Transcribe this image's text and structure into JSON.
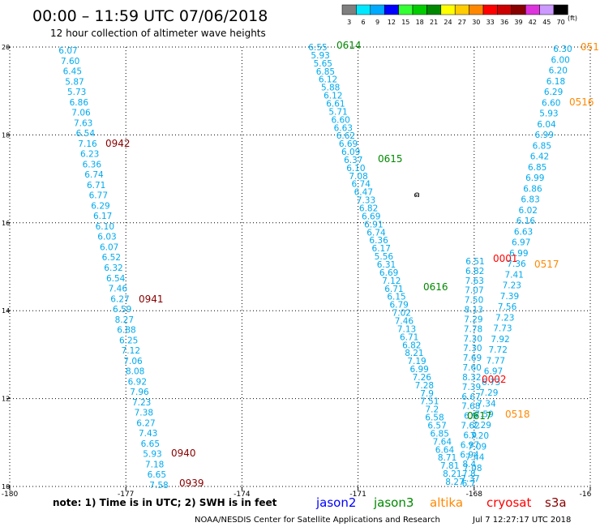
{
  "header": {
    "title": "00:00 – 11:59 UTC 07/06/2018",
    "subtitle": "12 hour collection of altimeter wave heights"
  },
  "colorbar": {
    "unit": "(ft)",
    "bins": [
      {
        "label": "3",
        "color": "#7f7f7f"
      },
      {
        "label": "6",
        "color": "#00e8ff"
      },
      {
        "label": "9",
        "color": "#00aaff"
      },
      {
        "label": "12",
        "color": "#0000ff"
      },
      {
        "label": "15",
        "color": "#33ff33"
      },
      {
        "label": "18",
        "color": "#00cc00"
      },
      {
        "label": "21",
        "color": "#008800"
      },
      {
        "label": "24",
        "color": "#ffff00"
      },
      {
        "label": "27",
        "color": "#ffcc00"
      },
      {
        "label": "30",
        "color": "#ff8800"
      },
      {
        "label": "33",
        "color": "#ff0000"
      },
      {
        "label": "36",
        "color": "#cc0000"
      },
      {
        "label": "39",
        "color": "#880000"
      },
      {
        "label": "42",
        "color": "#dd33dd"
      },
      {
        "label": "45",
        "color": "#cc99ff"
      },
      {
        "label": "70",
        "color": "#000000"
      }
    ]
  },
  "footer": {
    "note": "note:  1) Time is in UTC;  2) SWH is in feet",
    "satellites": [
      {
        "name": "jason2",
        "color": "#0000ff"
      },
      {
        "name": "jason3",
        "color": "#008800"
      },
      {
        "name": "altika",
        "color": "#ff8800"
      },
      {
        "name": "cryosat",
        "color": "#ff0000"
      },
      {
        "name": "s3a",
        "color": "#880000"
      }
    ],
    "credit": "NOAA/NESDIS Center for Satellite Applications and Research",
    "timestamp": "Jul  7 12:27:17 UTC 2018"
  },
  "colors": {
    "value": "#00aaee",
    "grid": "#000000"
  },
  "chart_data": {
    "type": "scatter",
    "xlim": [
      -180,
      -165
    ],
    "ylim": [
      10,
      20
    ],
    "xticks": [
      "-180",
      "-177",
      "-174",
      "-171",
      "-168",
      "-16"
    ],
    "yticks": [
      "20",
      "18",
      "16",
      "14",
      "12",
      "10"
    ],
    "grid": true,
    "tracks": [
      {
        "satellite": "s3a",
        "values": [
          "6.07",
          "7.60",
          "6.45",
          "5.87",
          "5.73",
          "6.86",
          "7.06",
          "7.63",
          "6.54",
          "7.16",
          "6.23",
          "6.36",
          "6.74",
          "6.71",
          "6.77",
          "6.29",
          "6.17",
          "6.10",
          "6.03",
          "6.07",
          "6.52",
          "6.32",
          "6.54",
          "7.46",
          "6.27",
          "6.59",
          "8.27",
          "6.88",
          "6.25",
          "7.12",
          "7.06",
          "8.08",
          "6.92",
          "7.96",
          "7.23",
          "7.38",
          "6.27",
          "7.43",
          "6.65",
          "5.93",
          "7.18",
          "6.65",
          "7.58"
        ]
      },
      {
        "satellite": "jason3",
        "values": [
          "6.55",
          "5.93",
          "5.65",
          "6.85",
          "6.12",
          "5.88",
          "6.12",
          "6.61",
          "5.71",
          "6.60",
          "6.63",
          "6.62",
          "6.69",
          "6.09",
          "6.37",
          "6.10",
          "7.08",
          "6.74",
          "6.47",
          "7.33",
          "6.82",
          "6.69",
          "6.91",
          "6.74",
          "6.36",
          "6.17",
          "5.56",
          "6.31",
          "6.69",
          "7.12",
          "6.71",
          "6.15",
          "6.79",
          "7.02",
          "7.46",
          "7.13",
          "6.71",
          "6.82",
          "8.21",
          "7.19",
          "6.99",
          "7.26",
          "7.28",
          "7.9",
          "7.51",
          "7.2",
          "6.58",
          "6.57",
          "6.85",
          "7.64",
          "6.64",
          "8.71",
          "7.81",
          "8.21",
          "8.27"
        ]
      },
      {
        "satellite": "cryosat",
        "values": [
          "6.51",
          "6.82",
          "7.63",
          "7.07",
          "7.50",
          "8.13",
          "7.29",
          "7.78",
          "7.30",
          "7.30",
          "7.69",
          "7.60",
          "8.32",
          "7.39",
          "6.67",
          "7.68",
          "6.9",
          "7.62",
          "6.9",
          "6.97",
          "6.94",
          "8.4",
          "7.8",
          "6.7"
        ]
      },
      {
        "satellite": "altika",
        "values": [
          "6.30",
          "6.00",
          "6.20",
          "6.18",
          "6.29",
          "6.60",
          "5.93",
          "6.04",
          "6.99",
          "6.85",
          "6.42",
          "6.85",
          "6.99",
          "6.86",
          "6.83",
          "6.02",
          "6.16",
          "6.63",
          "6.97",
          "6.99",
          "7.36",
          "7.41",
          "7.23",
          "7.39",
          "7.56",
          "7.23",
          "7.73",
          "7.92",
          "7.72",
          "7.77",
          "6.97",
          "6.73",
          "7.29",
          "7.34",
          "7.59",
          "7.29",
          "7.20",
          "7.09",
          "7.44",
          "7.08",
          "7.37"
        ]
      }
    ],
    "annotations": [
      {
        "text": "0942",
        "satellite": "s3a"
      },
      {
        "text": "0941",
        "satellite": "s3a"
      },
      {
        "text": "0940",
        "satellite": "s3a"
      },
      {
        "text": "0939",
        "satellite": "s3a"
      },
      {
        "text": "0614",
        "satellite": "jason3"
      },
      {
        "text": "0615",
        "satellite": "jason3"
      },
      {
        "text": "0616",
        "satellite": "jason3"
      },
      {
        "text": "0617",
        "satellite": "jason3"
      },
      {
        "text": "0001",
        "satellite": "cryosat"
      },
      {
        "text": "0002",
        "satellite": "cryosat"
      },
      {
        "text": "0516",
        "satellite": "altika"
      },
      {
        "text": "0517",
        "satellite": "altika"
      },
      {
        "text": "0518",
        "satellite": "altika"
      },
      {
        "text": "051",
        "satellite": "altika"
      }
    ]
  }
}
